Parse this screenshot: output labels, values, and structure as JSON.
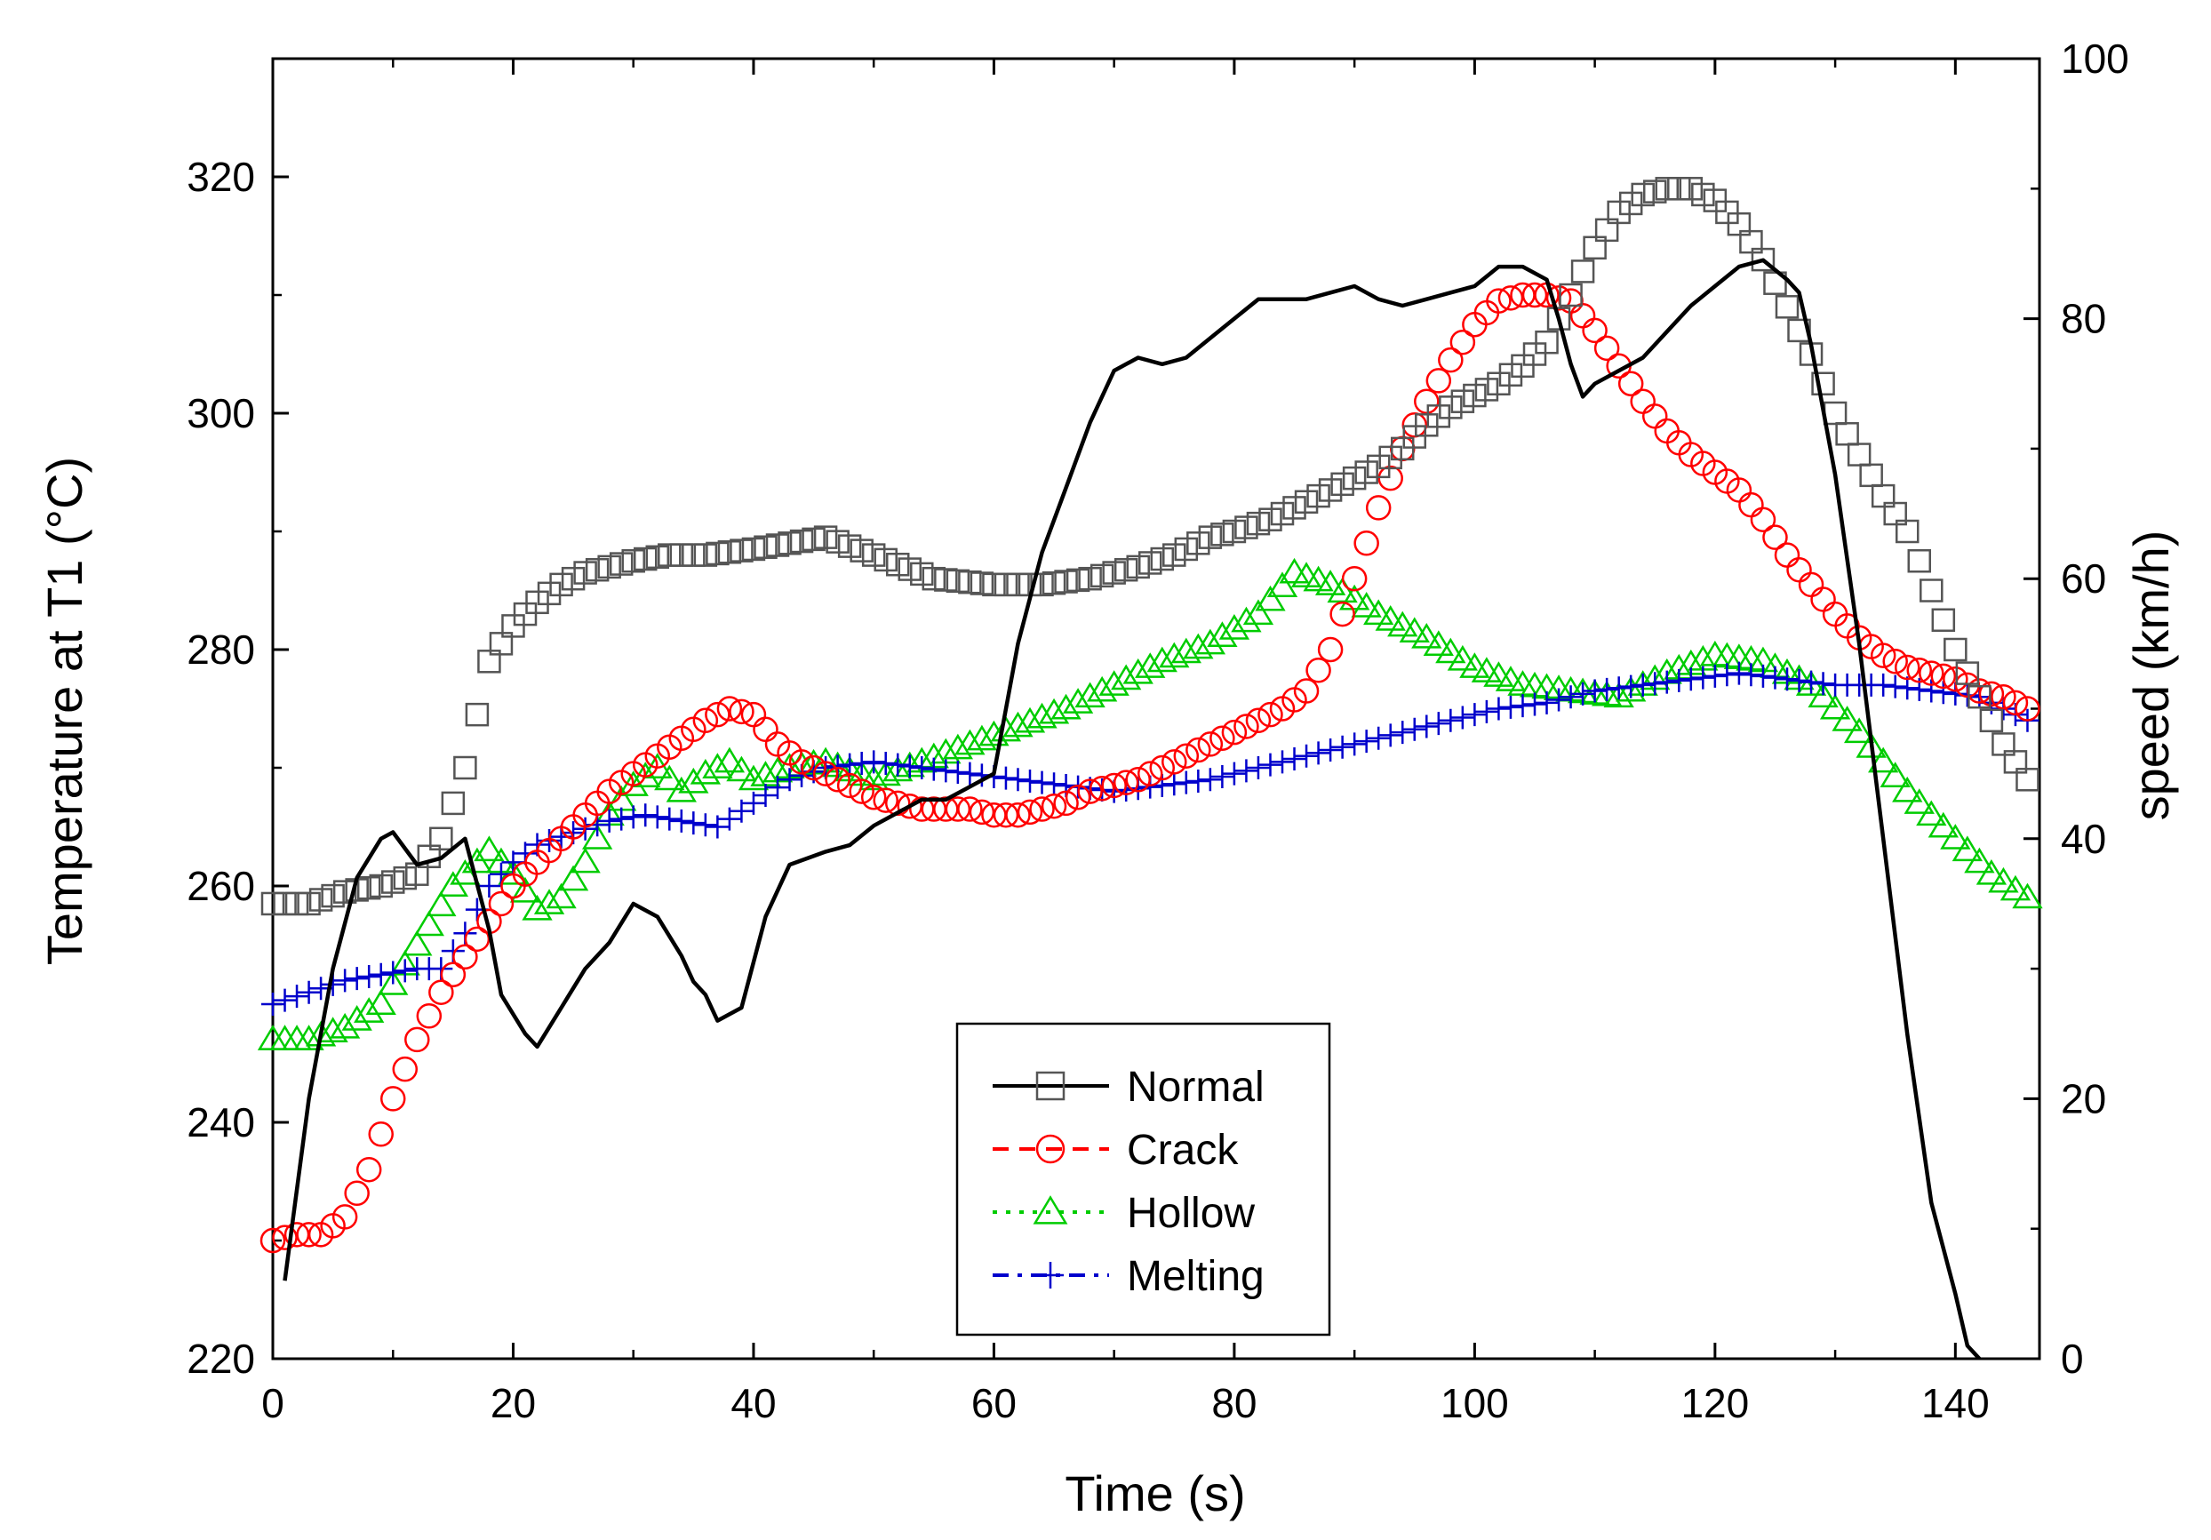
{
  "chart_data": {
    "type": "line",
    "title": "",
    "xlabel": "Time (s)",
    "ylabel": "Temperature at T1 (°C)",
    "y2label": "speed (km/h)",
    "xlim": [
      0,
      147
    ],
    "ylim": [
      220,
      330
    ],
    "y2lim": [
      0,
      100
    ],
    "xticks": [
      "0",
      "20",
      "40",
      "60",
      "80",
      "100",
      "120",
      "140"
    ],
    "yticks": [
      "220",
      "240",
      "260",
      "280",
      "300",
      "320"
    ],
    "y2ticks": [
      "0",
      "20",
      "40",
      "60",
      "80",
      "100"
    ],
    "legend_position": "bottom-center",
    "colors": {
      "normal": "#000000",
      "normal_marker": "#555555",
      "crack": "#ff0000",
      "hollow": "#00cc00",
      "melting": "#0000cc",
      "speed": "#000000"
    },
    "series": [
      {
        "name": "Normal",
        "key": "normal",
        "marker": "square",
        "axis": "left",
        "x": [
          0,
          3,
          6,
          9,
          12,
          14,
          16,
          18,
          20,
          22,
          24,
          26,
          28,
          30,
          33,
          36,
          40,
          43,
          46,
          50,
          55,
          60,
          64,
          68,
          72,
          75,
          78,
          80,
          83,
          86,
          89,
          92,
          94,
          96,
          98,
          100,
          102,
          104,
          106,
          108,
          110,
          112,
          114,
          116,
          118,
          120,
          122,
          124,
          126,
          128,
          130,
          132,
          134,
          136,
          138,
          140,
          142,
          144,
          146
        ],
        "y": [
          258.5,
          258.5,
          259.5,
          260.0,
          261.0,
          264.0,
          270.0,
          279.0,
          282.0,
          284.0,
          285.5,
          286.5,
          287.0,
          287.5,
          288.0,
          288.0,
          288.5,
          289.0,
          289.5,
          288.0,
          286.0,
          285.5,
          285.5,
          286.0,
          287.0,
          288.0,
          289.5,
          290.0,
          291.0,
          292.5,
          294.0,
          295.5,
          297.0,
          299.0,
          300.5,
          301.5,
          302.5,
          304.0,
          306.0,
          310.0,
          314.0,
          317.0,
          318.5,
          319.0,
          319.0,
          318.0,
          316.0,
          313.0,
          309.0,
          305.0,
          300.0,
          296.5,
          293.0,
          290.0,
          285.0,
          280.0,
          276.0,
          272.0,
          269.0
        ]
      },
      {
        "name": "Crack",
        "key": "crack",
        "marker": "circle",
        "axis": "left",
        "x": [
          0,
          2,
          4,
          6,
          8,
          10,
          12,
          14,
          16,
          18,
          20,
          22,
          24,
          26,
          28,
          30,
          32,
          34,
          36,
          38,
          40,
          42,
          44,
          46,
          48,
          50,
          52,
          54,
          56,
          58,
          60,
          62,
          64,
          66,
          68,
          70,
          72,
          74,
          76,
          78,
          80,
          82,
          84,
          86,
          88,
          90,
          92,
          94,
          96,
          98,
          100,
          102,
          104,
          106,
          108,
          110,
          112,
          114,
          116,
          118,
          120,
          122,
          124,
          126,
          128,
          130,
          132,
          134,
          136,
          138,
          140,
          142,
          144,
          146
        ],
        "y": [
          230.0,
          230.5,
          230.5,
          232.0,
          236.0,
          242.0,
          247.0,
          251.0,
          254.0,
          257.0,
          260.0,
          262.0,
          264.0,
          266.0,
          268.0,
          269.5,
          271.0,
          272.5,
          274.0,
          275.0,
          274.5,
          272.0,
          270.5,
          269.5,
          268.5,
          267.5,
          267.0,
          266.5,
          266.5,
          266.5,
          266.0,
          266.0,
          266.5,
          267.0,
          268.0,
          268.5,
          269.0,
          270.0,
          271.0,
          272.0,
          273.0,
          274.0,
          275.0,
          276.5,
          280.0,
          286.0,
          292.0,
          297.0,
          301.0,
          304.5,
          307.5,
          309.5,
          310.0,
          310.0,
          309.5,
          307.0,
          304.0,
          301.0,
          298.5,
          296.5,
          295.0,
          293.5,
          291.0,
          288.0,
          285.5,
          283.0,
          281.0,
          279.5,
          278.5,
          278.0,
          277.5,
          276.5,
          276.0,
          275.0
        ]
      },
      {
        "name": "Hollow",
        "key": "hollow",
        "marker": "triangle",
        "axis": "left",
        "x": [
          0,
          3,
          6,
          9,
          12,
          15,
          18,
          20,
          22,
          24,
          26,
          28,
          30,
          32,
          34,
          36,
          38,
          40,
          43,
          46,
          50,
          54,
          58,
          62,
          66,
          70,
          74,
          78,
          82,
          85,
          88,
          92,
          96,
          100,
          104,
          108,
          112,
          116,
          120,
          124,
          128,
          132,
          136,
          140,
          143,
          146
        ],
        "y": [
          247.0,
          247.0,
          248.0,
          250.0,
          255.0,
          260.0,
          263.0,
          261.0,
          258.0,
          259.0,
          262.0,
          266.0,
          268.5,
          270.0,
          268.0,
          269.5,
          270.5,
          269.0,
          270.0,
          270.5,
          269.0,
          270.5,
          272.0,
          273.5,
          275.0,
          277.0,
          279.0,
          280.5,
          283.0,
          286.5,
          285.5,
          283.0,
          281.0,
          278.5,
          277.0,
          276.5,
          276.0,
          278.0,
          279.5,
          279.0,
          277.0,
          273.0,
          268.0,
          264.0,
          261.0,
          259.0
        ]
      },
      {
        "name": "Melting",
        "key": "melting",
        "marker": "plus",
        "axis": "left",
        "x": [
          0,
          3,
          6,
          9,
          12,
          14,
          16,
          18,
          20,
          22,
          25,
          28,
          31,
          34,
          37,
          40,
          43,
          46,
          50,
          54,
          58,
          62,
          66,
          70,
          74,
          78,
          82,
          86,
          90,
          94,
          98,
          102,
          106,
          110,
          114,
          118,
          122,
          126,
          130,
          134,
          138,
          142,
          146
        ],
        "y": [
          250.0,
          251.0,
          252.0,
          252.5,
          253.0,
          253.0,
          256.0,
          260.0,
          262.0,
          263.5,
          264.5,
          265.5,
          266.0,
          265.5,
          265.0,
          267.0,
          269.0,
          270.0,
          270.5,
          270.0,
          269.5,
          269.0,
          268.5,
          268.0,
          268.5,
          269.0,
          270.0,
          271.0,
          272.0,
          273.0,
          274.0,
          275.0,
          275.5,
          276.5,
          277.0,
          277.5,
          278.0,
          277.5,
          277.0,
          277.0,
          276.5,
          276.0,
          274.0
        ]
      },
      {
        "name": "speed",
        "key": "speed",
        "marker": "none",
        "axis": "right",
        "in_legend": false,
        "x": [
          1,
          3,
          5,
          7,
          9,
          10,
          12,
          14,
          16,
          18,
          19,
          21,
          22,
          24,
          26,
          28,
          30,
          32,
          34,
          35,
          36,
          37,
          39,
          41,
          43,
          46,
          48,
          50,
          52,
          54,
          56,
          58,
          60,
          61,
          62,
          64,
          66,
          68,
          70,
          72,
          74,
          76,
          78,
          80,
          82,
          84,
          86,
          88,
          90,
          92,
          94,
          96,
          98,
          100,
          102,
          104,
          106,
          107,
          108,
          109,
          110,
          112,
          114,
          116,
          118,
          120,
          122,
          124,
          126,
          127,
          128,
          130,
          132,
          134,
          136,
          138,
          140,
          141,
          142
        ],
        "y": [
          6,
          20,
          30,
          37,
          40,
          40.5,
          38,
          38.5,
          40,
          33,
          28,
          25,
          24,
          27,
          30,
          32,
          35,
          34,
          31,
          29,
          28,
          26,
          27,
          34,
          38,
          39,
          39.5,
          41,
          42,
          43,
          43,
          44,
          45,
          50,
          55,
          62,
          67,
          72,
          76,
          77,
          76.5,
          77,
          78.5,
          80,
          81.5,
          81.5,
          81.5,
          82,
          82.5,
          81.5,
          81,
          81.5,
          82,
          82.5,
          84,
          84,
          83,
          80,
          76.5,
          74,
          75,
          76,
          77,
          79,
          81,
          82.5,
          84,
          84.5,
          83,
          82,
          78,
          68,
          55,
          40,
          25,
          12,
          5,
          1,
          0
        ]
      }
    ]
  }
}
